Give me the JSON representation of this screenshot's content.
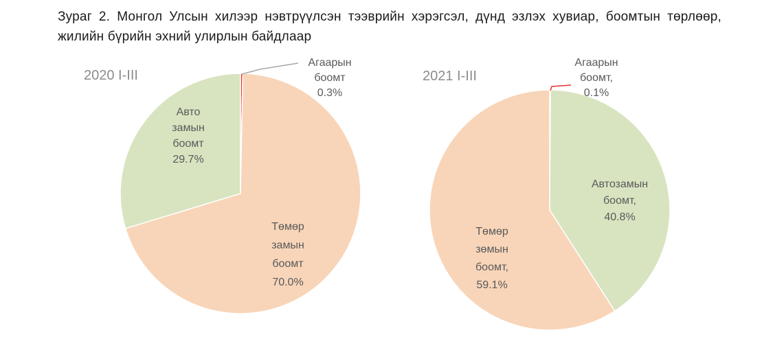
{
  "figure": {
    "title": "Зураг 2. Монгол Улсын хилээр нэвтрүүлсэн тээврийн хэрэгсэл, дүнд эзлэх хувиар, боомтын төрлөөр, жилийн бүрийн эхний улирлын байдлаар"
  },
  "chart_data": [
    {
      "type": "pie",
      "title": "2020 I-III",
      "slices": [
        {
          "name": "Агаарын боомт",
          "value": 0.3,
          "color": "#e2342d",
          "label_lines": [
            "Агаарын",
            "боомт",
            "0.3%"
          ]
        },
        {
          "name": "Төмөр замын боомт",
          "value": 70.0,
          "color": "#f8d5b9",
          "label_lines": [
            "Төмөр",
            "замын",
            "боомт",
            "70.0%"
          ]
        },
        {
          "name": "Авто замын боомт",
          "value": 29.7,
          "color": "#d8e4c0",
          "label_lines": [
            "Авто",
            "замын",
            "боомт",
            "29.7%"
          ]
        }
      ]
    },
    {
      "type": "pie",
      "title": "2021 I-III",
      "slices": [
        {
          "name": "Агаарын боомт",
          "value": 0.1,
          "color": "#e2342d",
          "label_lines": [
            "Агаарын",
            "боомт,",
            "0.1%"
          ]
        },
        {
          "name": "Автозамын боомт",
          "value": 40.8,
          "color": "#d8e4c0",
          "label_lines": [
            "Автозамын",
            "боомт,",
            "40.8%"
          ]
        },
        {
          "name": "Төмөр зөмын боомт",
          "value": 59.1,
          "color": "#f8d5b9",
          "label_lines": [
            "Төмөр",
            "зөмын",
            "боомт,",
            "59.1%"
          ]
        }
      ]
    }
  ]
}
